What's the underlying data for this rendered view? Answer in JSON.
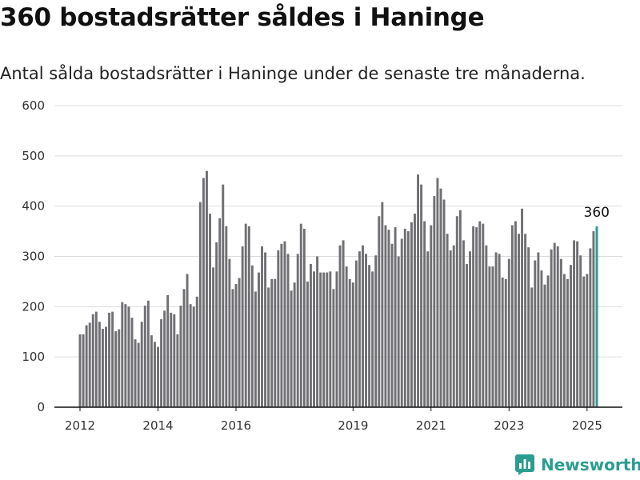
{
  "title": "360 bostadsrätter såldes i Haninge",
  "subtitle": "Antal sålda bostadsrätter i Haninge under de senaste tre månaderna.",
  "brand": {
    "name": "Newsworthy",
    "icon": "chart-logo-icon"
  },
  "colors": {
    "bar": "#707074",
    "highlight": "#2a9d8f",
    "grid": "#dddddd",
    "axis": "#111111"
  },
  "chart_data": {
    "type": "bar",
    "title": "360 bostadsrätter såldes i Haninge",
    "subtitle": "Antal sålda bostadsrätter i Haninge under de senaste tre månaderna.",
    "xlabel": "",
    "ylabel": "",
    "ylim": [
      0,
      600
    ],
    "yticks": [
      0,
      100,
      200,
      300,
      400,
      500,
      600
    ],
    "xticks": [
      "2012",
      "2014",
      "2016",
      "2019",
      "2021",
      "2023",
      "2025"
    ],
    "grid": true,
    "frequency": "monthly, rolling three-month sum",
    "start": "2012-01",
    "end": "2025-04",
    "highlight": {
      "date": "2025-04",
      "value": 360,
      "label": "360"
    },
    "series": [
      {
        "values": [
          145,
          145,
          163,
          168,
          185,
          190,
          170,
          156,
          160,
          188,
          190,
          151,
          155,
          209,
          205,
          200,
          178,
          135,
          128,
          170,
          202,
          212,
          143,
          130,
          120,
          175,
          192,
          223,
          188,
          185,
          145,
          202,
          235,
          265,
          205,
          200,
          220,
          408,
          456,
          470,
          385,
          278,
          328,
          376,
          443,
          360,
          295,
          235,
          245,
          257,
          320,
          365,
          360,
          282,
          230,
          268,
          320,
          308,
          238,
          255,
          255,
          312,
          325,
          330,
          305,
          232,
          248,
          305,
          365,
          355,
          250,
          285,
          270,
          300,
          268,
          268,
          268,
          270,
          235,
          270,
          322,
          332,
          280,
          255,
          248,
          292,
          310,
          322,
          305,
          283,
          270,
          302,
          380,
          408,
          362,
          353,
          325,
          358,
          300,
          335,
          355,
          350,
          368,
          385,
          463,
          443,
          370,
          310,
          362,
          420,
          456,
          435,
          413,
          345,
          312,
          322,
          380,
          392,
          332,
          285,
          310,
          360,
          358,
          370,
          365,
          322,
          280,
          280,
          308,
          305,
          258,
          255,
          295,
          362,
          370,
          345,
          395,
          345,
          318,
          238,
          292,
          308,
          272,
          244,
          262,
          314,
          327,
          320,
          295,
          265,
          255,
          283,
          332,
          330,
          302,
          260,
          265,
          316,
          350,
          360
        ]
      }
    ]
  }
}
